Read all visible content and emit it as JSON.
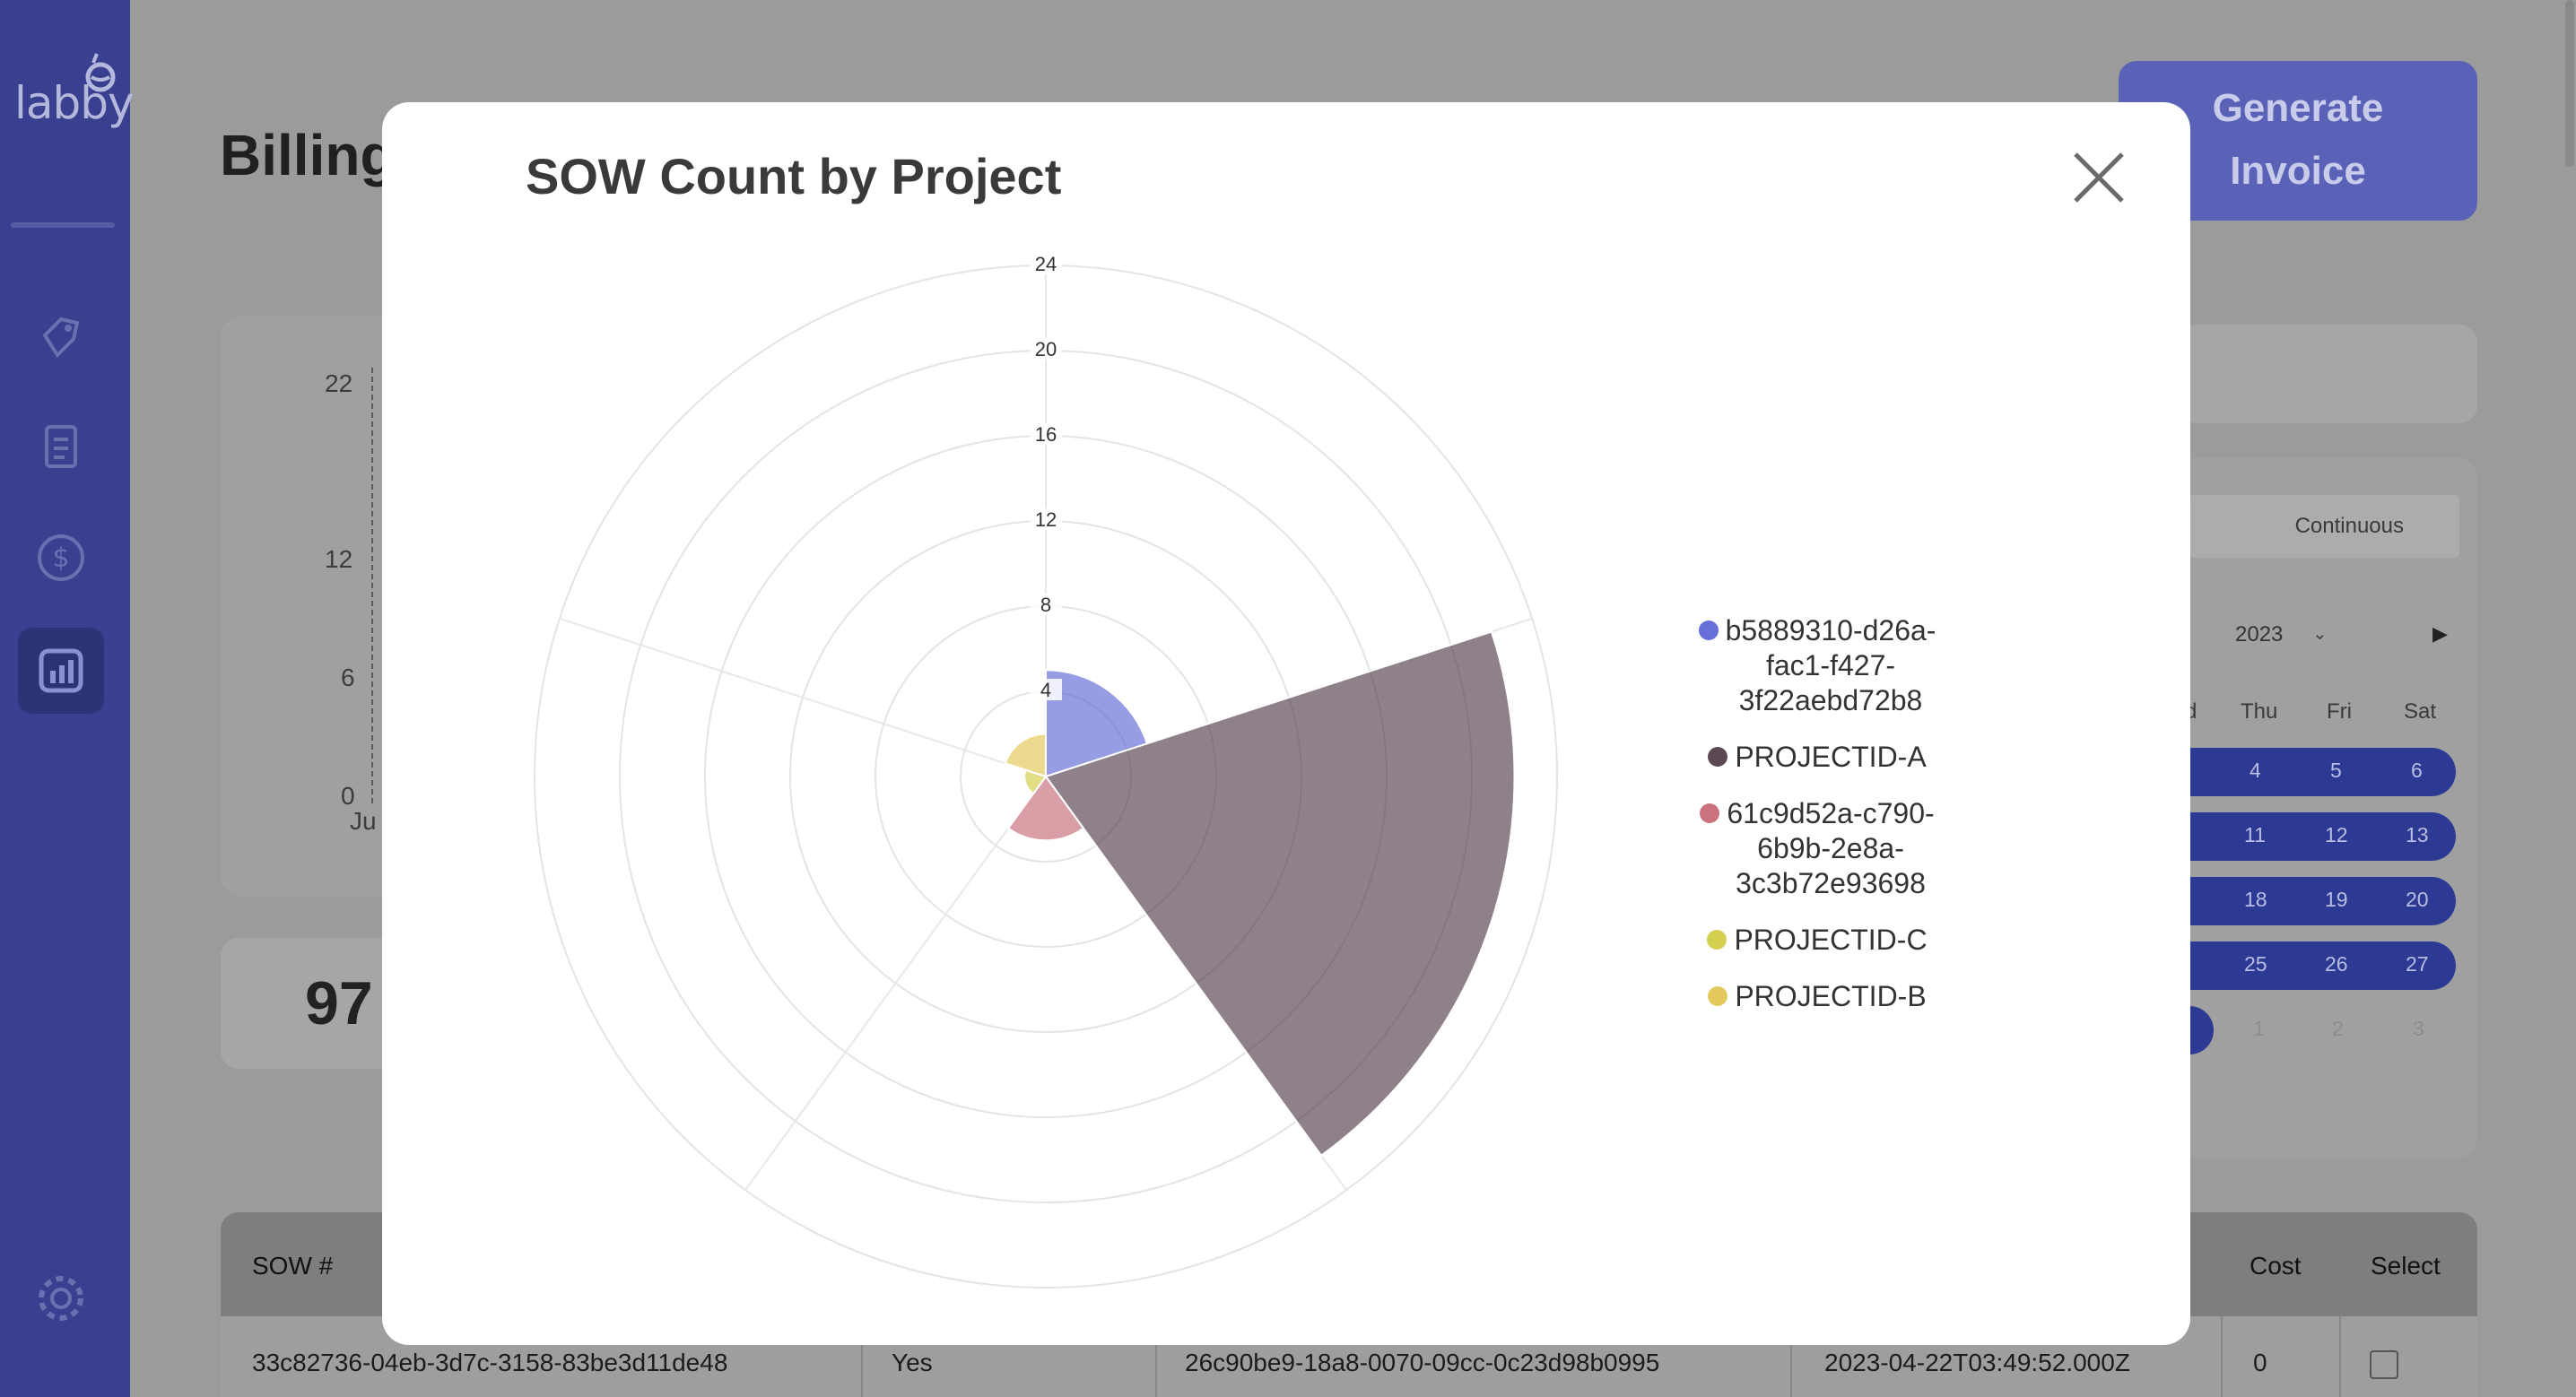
{
  "app": {
    "logo": "labby"
  },
  "page": {
    "title": "Billing",
    "generate_label_1": "Generate",
    "generate_label_2": "Invoice"
  },
  "bg_chart": {
    "ticks": [
      "22",
      "12",
      "6",
      "0"
    ],
    "x_label": "Ju"
  },
  "bg_stat": {
    "value": "97"
  },
  "calendar": {
    "tab_label": "Continuous",
    "year": "2023",
    "days_of_week": [
      "d",
      "Thu",
      "Fri",
      "Sat"
    ],
    "rows": [
      [
        "4",
        "5",
        "6"
      ],
      [
        "11",
        "12",
        "13"
      ],
      [
        "18",
        "19",
        "20"
      ],
      [
        "25",
        "26",
        "27"
      ],
      [
        "1",
        "2",
        "3"
      ]
    ]
  },
  "table": {
    "headers": {
      "sow": "SOW #",
      "cost": "Cost",
      "select": "Select"
    },
    "row": {
      "sow": "33c82736-04eb-3d7c-3158-83be3d11de48",
      "flag": "Yes",
      "project": "26c90be9-18a8-0070-09cc-0c23d98b0995",
      "date": "2023-04-22T03:49:52.000Z",
      "cost": "0"
    }
  },
  "chart_data": {
    "type": "polar-area",
    "title": "SOW Count by Project",
    "r_range": [
      0,
      24
    ],
    "r_ticks": [
      4,
      8,
      12,
      16,
      20,
      24
    ],
    "series": [
      {
        "name": "b5889310-d26a-fac1-f427-3f22aebd72b8",
        "value": 5,
        "color": "#5661d4"
      },
      {
        "name": "PROJECTID-A",
        "value": 22,
        "color": "#4a3440"
      },
      {
        "name": "61c9d52a-c790-6b9b-2e8a-3c3b72e93698",
        "value": 3,
        "color": "#c46470"
      },
      {
        "name": "PROJECTID-C",
        "value": 1,
        "color": "#cfca3c"
      },
      {
        "name": "PROJECTID-B",
        "value": 2,
        "color": "#e0c34a"
      }
    ],
    "legend": [
      {
        "lines": [
          "b5889310-d26a-",
          "fac1-f427-",
          "3f22aebd72b8"
        ]
      },
      {
        "lines": [
          "PROJECTID-A"
        ]
      },
      {
        "lines": [
          "61c9d52a-c790-",
          "6b9b-2e8a-",
          "3c3b72e93698"
        ]
      },
      {
        "lines": [
          "PROJECTID-C"
        ]
      },
      {
        "lines": [
          "PROJECTID-B"
        ]
      }
    ]
  }
}
